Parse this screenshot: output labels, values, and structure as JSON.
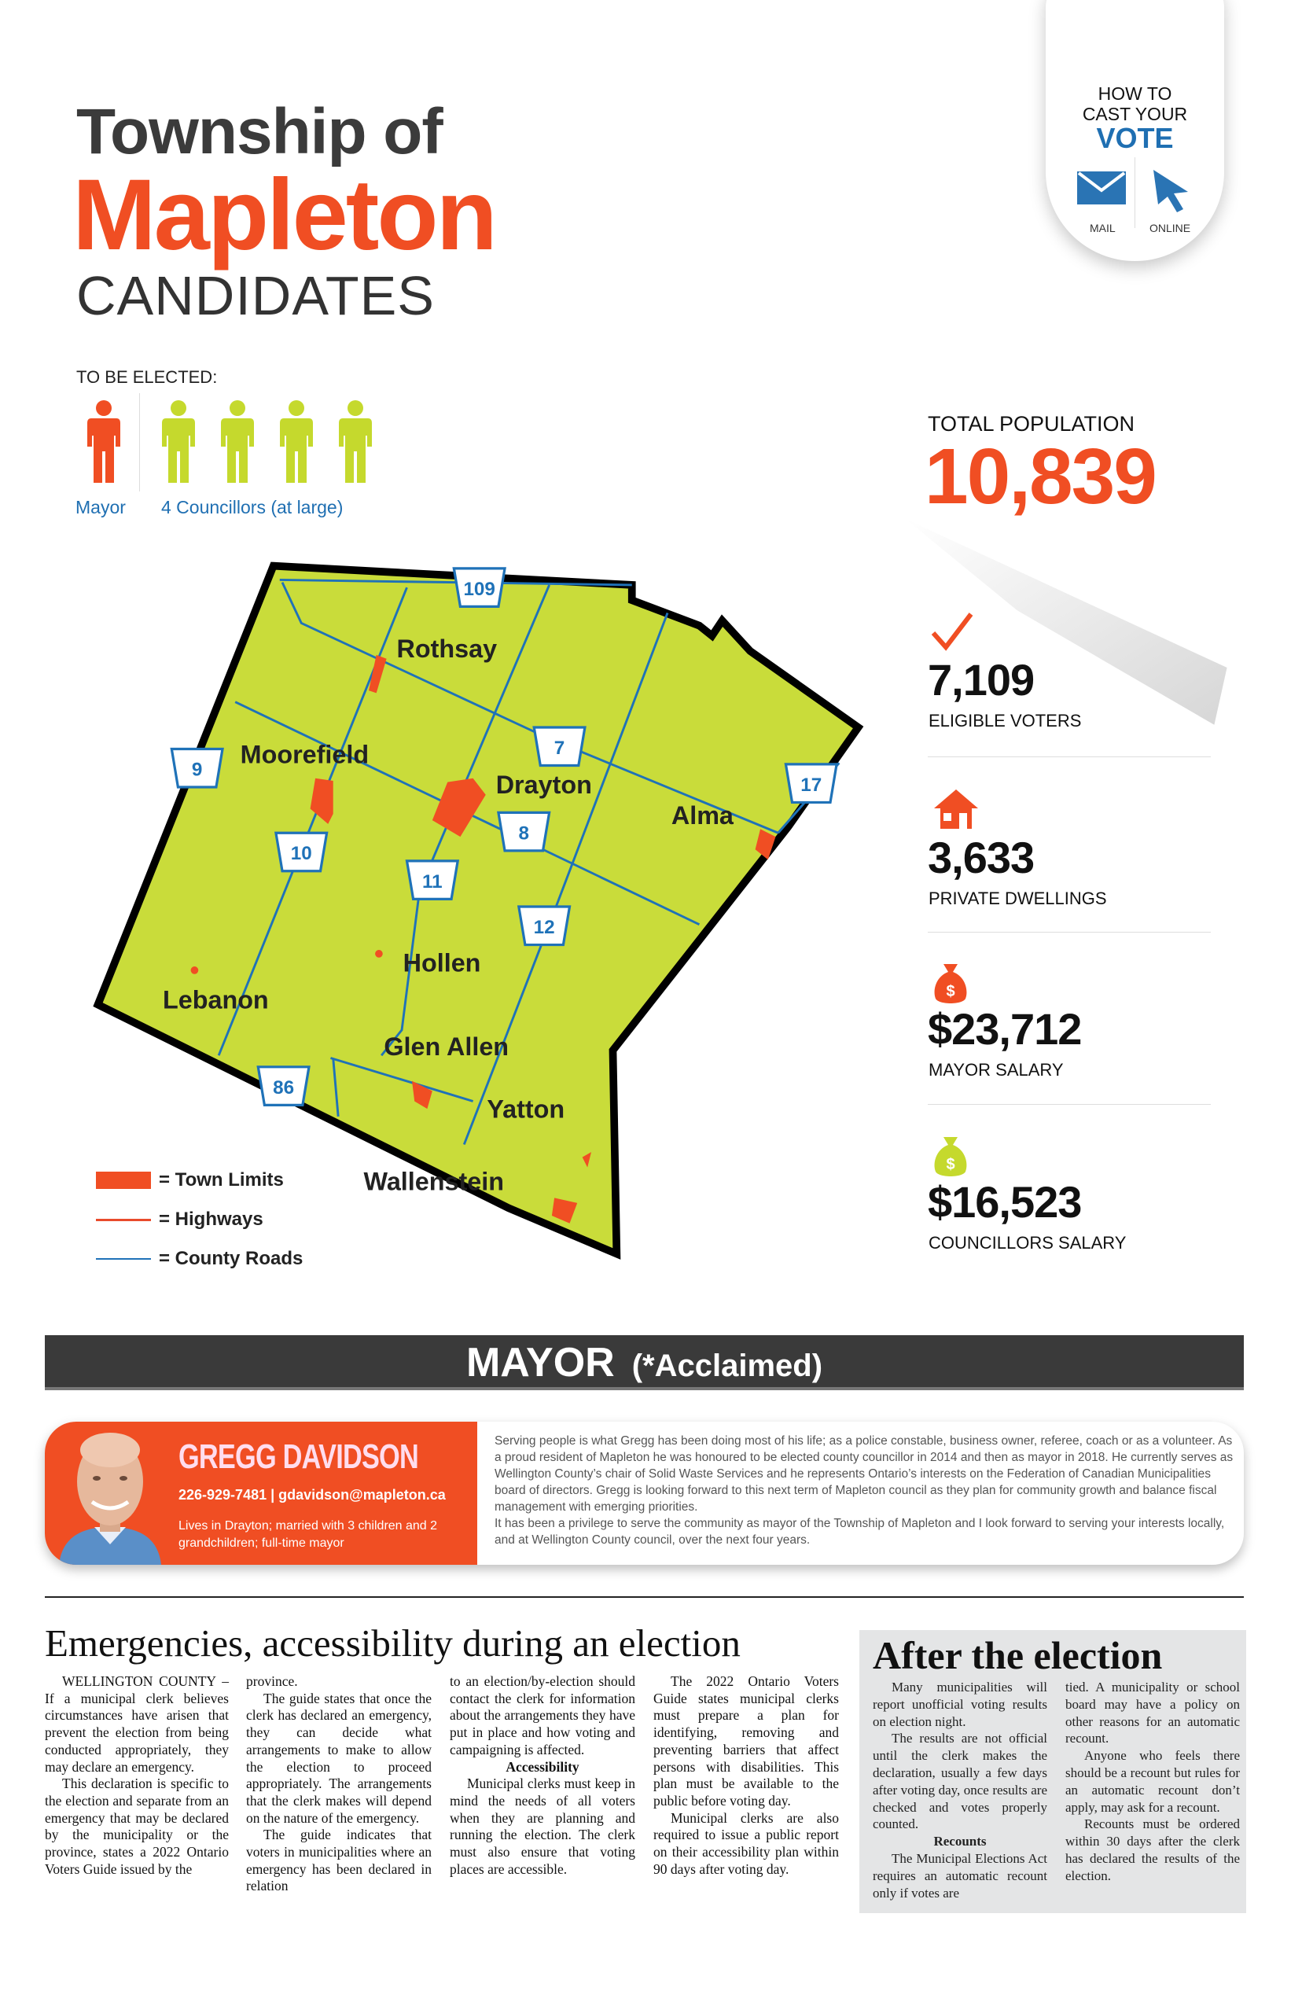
{
  "header": {
    "line1": "Township of",
    "line2": "Mapleton",
    "line3": "CANDIDATES"
  },
  "vote_badge": {
    "line1": "HOW TO",
    "line2": "CAST YOUR",
    "line3": "VOTE",
    "mail_label": "MAIL",
    "online_label": "ONLINE",
    "icons": [
      "mail-icon",
      "cursor-icon"
    ]
  },
  "to_be_elected": {
    "title": "TO BE ELECTED:",
    "mayor_label": "Mayor",
    "councillors_label": "4 Councillors (at large)",
    "mayor_count": 1,
    "councillor_count": 4
  },
  "stats": {
    "population_label": "TOTAL POPULATION",
    "population": "10,839",
    "items": [
      {
        "icon": "checkmark-icon",
        "value": "7,109",
        "label": "ELIGIBLE VOTERS"
      },
      {
        "icon": "house-icon",
        "value": "3,633",
        "label": "PRIVATE DWELLINGS"
      },
      {
        "icon": "money-bag-icon",
        "value": "$23,712",
        "label": "MAYOR SALARY"
      },
      {
        "icon": "money-bag-icon",
        "value": "$16,523",
        "label": "COUNCILLORS SALARY"
      }
    ]
  },
  "map": {
    "places": [
      "Rothsay",
      "Moorefield",
      "Drayton",
      "Alma",
      "Hollen",
      "Lebanon",
      "Glen Allen",
      "Yatton",
      "Wallenstein"
    ],
    "roads": [
      "109",
      "9",
      "7",
      "17",
      "10",
      "8",
      "11",
      "12",
      "86"
    ],
    "legend": [
      "= Town Limits",
      "= Highways",
      "= County Roads"
    ],
    "colors": {
      "land": "#c9dc3a",
      "town": "#f04e23",
      "road": "#1f72b8"
    }
  },
  "mayor_section": {
    "title": "MAYOR",
    "note": "(*Acclaimed)"
  },
  "candidate": {
    "name": "GREGG DAVIDSON",
    "contact": "226-929-7481 | gdavidson@mapleton.ca",
    "lives": "Lives in Drayton; married with 3 children and 2 grandchildren; full-time mayor",
    "bio": [
      "Serving people is what Gregg has been doing most of his life; as a police constable, business owner, referee, coach or as a volunteer. As a proud resident of Mapleton he was honoured to be elected county councillor in 2014 and then as mayor in 2018. He currently serves as Wellington County’s chair of Solid Waste Services and he represents Ontario’s interests on the Federation of Canadian Municipalities board of directors. Gregg is looking forward to this next term of Mapleton council as they plan for community growth and balance fiscal management with emerging priorities.",
      "It has been a privilege to serve the community as mayor of the Township of Mapleton and I look forward to serving your interests locally, and at Wellington County council, over the next four years."
    ]
  },
  "article": {
    "headline": "Emergencies, accessibility during an election",
    "col1": [
      "WELLINGTON COUNTY – If a municipal clerk believes circumstances have arisen that prevent the election from being conducted appropriately, they may declare an emergency.",
      "This declaration is specific to the election and separate from an emergency that may be declared by the municipality or the province, states a 2022 Ontario Voters Guide issued by the"
    ],
    "col2": [
      "province.",
      "The guide states that once the clerk has declared an emergency, they can decide what arrangements to make to allow the election to proceed appropriately. The arrangements that the clerk makes will depend on the nature of the emergency.",
      "The guide indicates that voters in municipalities where an emergency has been declared in relation"
    ],
    "col3": [
      "to an election/by-election should contact the clerk for information about the arrangements they have put in place and how voting and campaigning is affected.",
      "Accessibility",
      "Municipal clerks must keep in mind the needs of all voters when they are planning and running the election. The clerk must also ensure that voting places are accessible."
    ],
    "col4": [
      "The 2022 Ontario Voters Guide states municipal clerks must prepare a plan for identifying, removing and preventing barriers that affect persons with disabilities. This plan must be available to the public before voting day.",
      "Municipal clerks are also required to issue a public report on their accessibility plan within 90 days after voting day."
    ]
  },
  "after": {
    "headline": "After the election",
    "col1": [
      "Many municipalities will report unofficial voting results on election night.",
      "The results are not official until the clerk makes the declaration, usually a few days after voting day, once results are checked and votes properly counted.",
      "Recounts",
      "The Municipal Elections Act requires an automatic recount only if votes are"
    ],
    "col2": [
      "tied. A municipality or school board may have a policy on other reasons for an automatic recount.",
      "Anyone who feels there should be a recount but rules for an automatic recount don’t apply, may ask for a recount.",
      "Recounts must be ordered within 30 days after the clerk has declared the results of the election."
    ]
  },
  "colors": {
    "accent": "#f04e23",
    "blue": "#1f6fb2",
    "green": "#c5d92d"
  }
}
